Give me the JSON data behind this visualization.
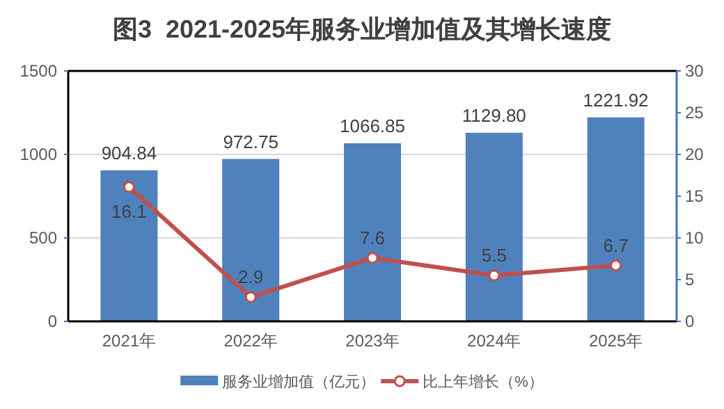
{
  "chart_data": {
    "type": "bar",
    "title": "图3  2021-2025年服务业增加值及其增长速度",
    "categories": [
      "2021年",
      "2022年",
      "2023年",
      "2024年",
      "2025年"
    ],
    "series": [
      {
        "name": "服务业增加值（亿元）",
        "color": "#4f81bd",
        "values": [
          904.84,
          972.75,
          1066.85,
          1129.8,
          1221.92
        ],
        "value_labels": [
          "904.84",
          "972.75",
          "1066.85",
          "1129.80",
          "1221.92"
        ]
      },
      {
        "name": "比上年增长（%）",
        "type": "line",
        "axis": "y2",
        "color": "#c0504d",
        "values": [
          16.1,
          2.9,
          7.6,
          5.5,
          6.7
        ],
        "value_labels": [
          "16.1",
          "2.9",
          "7.6",
          "5.5",
          "6.7"
        ]
      }
    ],
    "ylim": [
      0,
      1500
    ],
    "yticks": [
      0,
      500,
      1000,
      1500
    ],
    "y2lim": [
      0,
      30
    ],
    "y2ticks": [
      0,
      5,
      10,
      15,
      20,
      25,
      30
    ],
    "grid": "y",
    "legend": "bottom",
    "marker": "circle",
    "line_style": "solid"
  }
}
